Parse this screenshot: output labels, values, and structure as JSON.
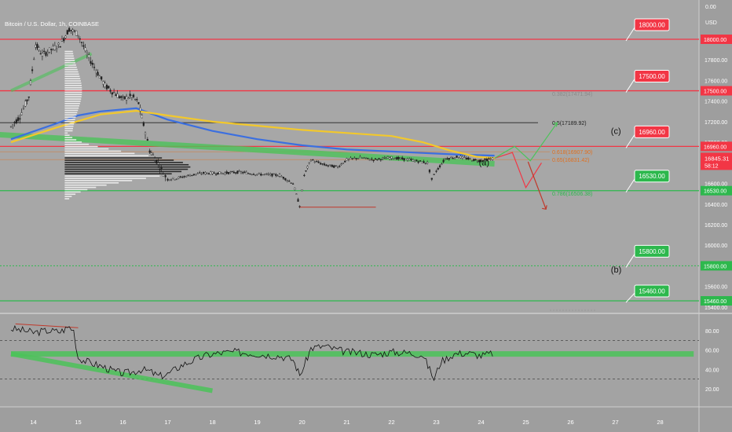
{
  "header": {
    "symbol_title": "Bitcoin / U.S. Dollar, 1h, COINBASE"
  },
  "price_axis": {
    "currency": "USD",
    "top_value": "0.00",
    "ticks": [
      "18000.00",
      "17800.00",
      "17600.00",
      "17500.00",
      "17400.00",
      "17200.00",
      "17000.00",
      "16960.00",
      "16800.00",
      "16600.00",
      "16530.00",
      "16400.00",
      "16200.00",
      "16000.00",
      "15800.00",
      "15600.00",
      "15460.00",
      "15400.00"
    ],
    "current_price": "16845.31",
    "countdown": "58:12"
  },
  "rsi_axis": {
    "ticks": [
      "80.00",
      "60.00",
      "40.00",
      "20.00"
    ]
  },
  "time_axis": {
    "labels": [
      {
        "label": "14",
        "x": 14
      },
      {
        "label": "15",
        "x": 15
      },
      {
        "label": "16",
        "x": 16
      },
      {
        "label": "17",
        "x": 17
      },
      {
        "label": "18",
        "x": 18
      },
      {
        "label": "19",
        "x": 19
      },
      {
        "label": "20",
        "x": 20
      },
      {
        "label": "21",
        "x": 21
      },
      {
        "label": "22",
        "x": 22
      },
      {
        "label": "23",
        "x": 23
      },
      {
        "label": "24",
        "x": 24
      },
      {
        "label": "25",
        "x": 25
      },
      {
        "label": "26",
        "x": 26
      },
      {
        "label": "27",
        "x": 27
      },
      {
        "label": "28",
        "x": 28
      }
    ]
  },
  "levels": [
    {
      "price": 18000,
      "label": "18000.00",
      "color": "#f23645",
      "axis_label": "18000.00"
    },
    {
      "price": 17500,
      "label": "17500.00",
      "color": "#f23645",
      "axis_label": "17500.00"
    },
    {
      "price": 16960,
      "label": "16960.00",
      "color": "#f23645",
      "axis_label": "16960.00"
    },
    {
      "price": 16530,
      "label": "16530.00",
      "color": "#2db84d",
      "axis_label": "16530.00"
    },
    {
      "price": 15800,
      "label": "15800.00",
      "color": "#2db84d",
      "axis_label": "15800.00"
    },
    {
      "price": 15460,
      "label": "15460.00",
      "color": "#2db84d",
      "axis_label": "15460.00"
    }
  ],
  "fib_levels": [
    {
      "text": "0.382(17471.94)",
      "price": 17471.94,
      "color": "#8a8a8a"
    },
    {
      "text": "0.5(17189.92)",
      "price": 17189.92,
      "color": "#222222"
    },
    {
      "text": "0.618(16907.90)",
      "price": 16907.9,
      "color": "#e07020"
    },
    {
      "text": "0.65(16831.42)",
      "price": 16831.42,
      "color": "#e07020"
    },
    {
      "text": "0.786(16506.38)",
      "price": 16506.38,
      "color": "#2db84d"
    }
  ],
  "wave_labels": [
    {
      "text": "(a)",
      "x": 23.95,
      "price": 16775
    },
    {
      "text": "(b)",
      "x": 26.9,
      "price": 15735
    },
    {
      "text": "(c)",
      "x": 26.9,
      "price": 17080
    }
  ],
  "colors": {
    "background": "#9e9e9e",
    "red_level": "#f23645",
    "green_level": "#2db84d",
    "ma_yellow": "#f2c82c",
    "ma_blue": "#3b6fe0",
    "trend_green": "#4cc35a",
    "candle": "#222222",
    "current_price_tag": "#f23645"
  },
  "chart_data": {
    "type": "line",
    "title": "Bitcoin / U.S. Dollar, 1h, COINBASE",
    "xlabel": "",
    "ylabel": "USD",
    "ylim": [
      15340,
      18300
    ],
    "xlim": [
      13.5,
      28.75
    ],
    "x_unit": "day of month",
    "series": [
      {
        "x": [
          13.5,
          13.7,
          13.9,
          14.05,
          14.2,
          14.4,
          14.6,
          14.8,
          15.0,
          15.2,
          15.4,
          15.6,
          15.8,
          16.0,
          16.2,
          16.35,
          16.5,
          16.6,
          16.75,
          16.9,
          17.0,
          17.2,
          17.5,
          17.8,
          18.2,
          18.6,
          19.0,
          19.5,
          19.8,
          19.95,
          20.05,
          20.2,
          20.5,
          20.8,
          21.0,
          21.3,
          21.6,
          22.0,
          22.4,
          22.8,
          22.9,
          23.0,
          23.2,
          23.5,
          23.8,
          24.0,
          24.3
        ],
        "values": [
          17150,
          17250,
          17450,
          17950,
          17850,
          17900,
          17950,
          18100,
          18050,
          17850,
          17700,
          17550,
          17480,
          17420,
          17450,
          17380,
          17100,
          16920,
          16820,
          16700,
          16640,
          16650,
          16680,
          16700,
          16700,
          16710,
          16690,
          16680,
          16600,
          16380,
          16680,
          16830,
          16780,
          16760,
          16830,
          16850,
          16830,
          16850,
          16830,
          16800,
          16640,
          16720,
          16840,
          16860,
          16830,
          16820,
          16845
        ]
      },
      {
        "x": [
          13.5,
          14.5,
          15.5,
          16.3,
          17.0,
          18.0,
          19.0,
          20.0,
          21.0,
          22.0,
          22.7,
          23.3,
          23.9,
          24.3
        ],
        "values": [
          17000,
          17140,
          17270,
          17305,
          17260,
          17200,
          17160,
          17120,
          17090,
          17060,
          17000,
          16920,
          16860,
          16845
        ]
      },
      {
        "x": [
          13.5,
          14.5,
          15.0,
          15.5,
          16.3,
          17.0,
          18.0,
          19.0,
          20.0,
          21.0,
          22.0,
          23.0,
          23.5,
          24.3
        ],
        "values": [
          17030,
          17180,
          17260,
          17300,
          17330,
          17220,
          17110,
          17030,
          16970,
          16930,
          16910,
          16890,
          16880,
          16870
        ]
      },
      {
        "x": [
          13.0,
          24.3
        ],
        "values": [
          17080,
          16790
        ]
      }
    ],
    "rsi": {
      "ylim": [
        10,
        98
      ],
      "levels": [
        70,
        30
      ],
      "x": [
        13.5,
        13.8,
        14.0,
        14.3,
        14.6,
        14.8,
        14.9,
        15.0,
        15.2,
        15.4,
        15.6,
        15.8,
        16.0,
        16.2,
        16.4,
        16.6,
        16.8,
        17.0,
        17.3,
        17.6,
        17.9,
        18.2,
        18.5,
        18.8,
        19.0,
        19.2,
        19.5,
        19.8,
        19.95,
        20.05,
        20.2,
        20.5,
        20.8,
        21.0,
        21.3,
        21.6,
        22.0,
        22.4,
        22.7,
        22.85,
        22.95,
        23.1,
        23.4,
        23.7,
        24.0,
        24.3
      ],
      "values": [
        82,
        80,
        78,
        80,
        79,
        84,
        80,
        52,
        48,
        45,
        42,
        38,
        36,
        37,
        40,
        38,
        33,
        35,
        44,
        50,
        55,
        57,
        58,
        57,
        56,
        55,
        54,
        50,
        34,
        44,
        62,
        64,
        60,
        58,
        57,
        55,
        58,
        57,
        55,
        40,
        30,
        48,
        56,
        57,
        54,
        57
      ]
    }
  }
}
